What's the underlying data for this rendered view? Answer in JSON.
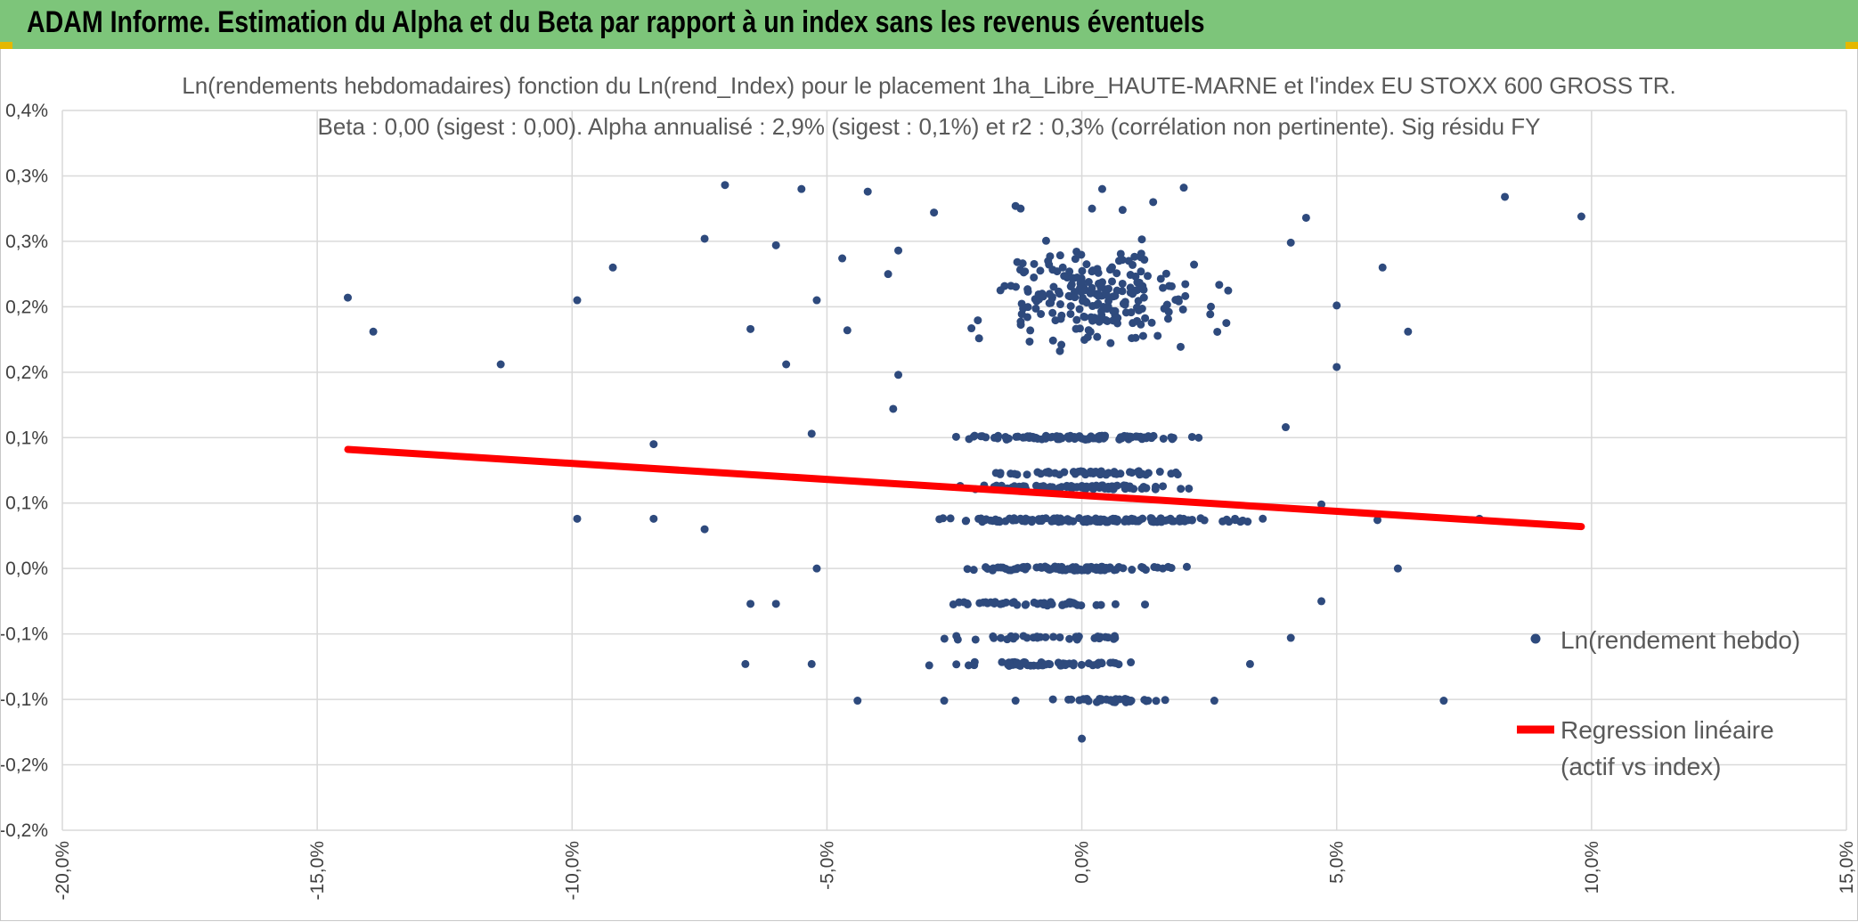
{
  "banner": {
    "title": "ADAM Informe. Estimation du Alpha et du Beta par rapport à un index sans les revenus éventuels",
    "color": "#7dc57a"
  },
  "chart_data": {
    "type": "scatter",
    "title_line1": "Ln(rendements hebdomadaires) fonction du Ln(rend_Index) pour le placement 1ha_Libre_HAUTE-MARNE et l'index EU STOXX 600 GROSS TR.",
    "title_line2": "Beta : 0,00 (sigest : 0,00). Alpha annualisé : 2,9% (sigest : 0,1%) et r2 : 0,3% (corrélation non pertinente). Sig résidu FY",
    "xlim": [
      -0.2,
      0.15
    ],
    "ylim": [
      -0.002,
      0.0035
    ],
    "x_ticks": [
      -0.2,
      -0.15,
      -0.1,
      -0.05,
      0.0,
      0.05,
      0.1,
      0.15
    ],
    "x_tick_labels": [
      "-20,0%",
      "-15,0%",
      "-10,0%",
      "-5,0%",
      "0,0%",
      "5,0%",
      "10,0%",
      "15,0%"
    ],
    "y_ticks": [
      0.0035,
      0.003,
      0.0025,
      0.002,
      0.0015,
      0.001,
      0.0005,
      0.0,
      -0.0005,
      -0.001,
      -0.0015,
      -0.002
    ],
    "y_tick_labels": [
      "0,4%",
      "0,3%",
      "0,3%",
      "0,2%",
      "0,2%",
      "0,1%",
      "0,1%",
      "0,0%",
      "-0,1%",
      "-0,1%",
      "-0,2%",
      "-0,2%"
    ],
    "grid": true,
    "legend_position": "right",
    "series": [
      {
        "name": "Ln(rendement hebdo)",
        "kind": "scatter",
        "color": "#2e4a7d",
        "outlier_points": [
          [
            -0.144,
            0.00207
          ],
          [
            -0.139,
            0.00181
          ],
          [
            -0.114,
            0.00156
          ],
          [
            -0.099,
            0.00205
          ],
          [
            -0.092,
            0.0023
          ],
          [
            -0.074,
            0.00252
          ],
          [
            -0.07,
            0.00293
          ],
          [
            -0.065,
            0.00183
          ],
          [
            -0.06,
            0.00247
          ],
          [
            -0.058,
            0.00156
          ],
          [
            -0.055,
            0.0029
          ],
          [
            -0.052,
            0.00205
          ],
          [
            -0.047,
            0.00237
          ],
          [
            -0.046,
            0.00182
          ],
          [
            -0.042,
            0.00288
          ],
          [
            -0.038,
            0.00225
          ],
          [
            -0.036,
            0.00243
          ],
          [
            -0.037,
            0.00122
          ],
          [
            -0.029,
            0.00272
          ],
          [
            -0.036,
            0.00148
          ],
          [
            -0.084,
            0.00095
          ],
          [
            -0.099,
            0.00038
          ],
          [
            -0.084,
            0.00038
          ],
          [
            -0.074,
            0.0003
          ],
          [
            -0.053,
            0.00103
          ],
          [
            -0.052,
            0.0
          ],
          [
            -0.06,
            -0.00027
          ],
          [
            -0.065,
            -0.00027
          ],
          [
            -0.066,
            -0.00073
          ],
          [
            -0.053,
            -0.00073
          ],
          [
            -0.044,
            -0.00101
          ],
          [
            -0.027,
            -0.00101
          ],
          [
            -0.013,
            -0.00101
          ],
          [
            0.0,
            -0.0013
          ],
          [
            0.013,
            -0.00101
          ],
          [
            0.026,
            -0.00101
          ],
          [
            0.033,
            -0.00073
          ],
          [
            0.047,
            -0.00025
          ],
          [
            0.058,
            0.00037
          ],
          [
            0.062,
            0.0
          ],
          [
            0.059,
            0.0023
          ],
          [
            0.064,
            0.00181
          ],
          [
            0.071,
            -0.00101
          ],
          [
            0.078,
            0.00038
          ],
          [
            0.083,
            0.00284
          ],
          [
            0.098,
            0.00269
          ],
          [
            0.044,
            0.00268
          ],
          [
            0.041,
            0.00249
          ],
          [
            0.05,
            0.00201
          ],
          [
            0.05,
            0.00154
          ],
          [
            0.047,
            0.00049
          ],
          [
            0.04,
            0.00108
          ],
          [
            0.041,
            -0.00053
          ],
          [
            0.004,
            0.0029
          ],
          [
            0.014,
            0.0028
          ],
          [
            0.02,
            0.00291
          ],
          [
            0.002,
            0.00275
          ],
          [
            0.008,
            0.00274
          ],
          [
            -0.013,
            0.00277
          ],
          [
            -0.012,
            0.00275
          ]
        ],
        "clusters": [
          {
            "y": 0.0,
            "x_range": [
              -0.035,
              0.035
            ],
            "count": 95
          },
          {
            "y": 0.00037,
            "x_range": [
              -0.045,
              0.045
            ],
            "count": 140
          },
          {
            "y": 0.00062,
            "x_range": [
              -0.035,
              0.035
            ],
            "count": 80
          },
          {
            "y": 0.00073,
            "x_range": [
              -0.03,
              0.03
            ],
            "count": 55
          },
          {
            "y": 0.001,
            "x_range": [
              -0.035,
              0.035
            ],
            "count": 95
          },
          {
            "y": -0.00027,
            "x_range": [
              -0.04,
              0.025
            ],
            "count": 45
          },
          {
            "y": -0.00053,
            "x_range": [
              -0.04,
              0.025
            ],
            "count": 35
          },
          {
            "y": -0.00073,
            "x_range": [
              -0.04,
              0.025
            ],
            "count": 55
          },
          {
            "y": -0.00101,
            "x_range": [
              -0.01,
              0.02
            ],
            "count": 35
          },
          {
            "y_range": [
              0.0015,
              0.00265
            ],
            "x_range": [
              -0.03,
              0.035
            ],
            "count": 220
          }
        ]
      },
      {
        "name": "Regression linéaire (actif vs index)",
        "name_line1": "Regression linéaire",
        "name_line2": "(actif vs index)",
        "kind": "line",
        "color": "#ff0000",
        "x": [
          -0.144,
          0.098
        ],
        "y": [
          0.00091,
          0.00032
        ]
      }
    ]
  }
}
